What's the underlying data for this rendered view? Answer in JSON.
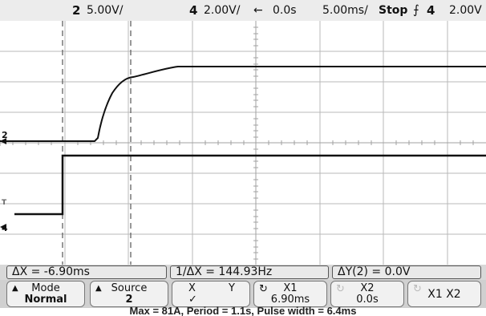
{
  "topbar": {
    "ch2_number": "2",
    "ch2_scale": "5.00V/",
    "ch4_number": "4",
    "ch4_scale": "2.00V/",
    "arrow": "←",
    "delay": "0.0s",
    "timebase": "5.00ms/",
    "run_state": "Stop",
    "trigger_slope_icon": "falling-edge-icon",
    "trigger_source": "4",
    "trigger_level": "2.00V"
  },
  "markers": {
    "ch2_ground": "2",
    "ch4_ground": "4",
    "trigger_marker": "T"
  },
  "measurements": {
    "delta_x": "ΔX = -6.90ms",
    "inv_delta_x": "1/ΔX = 144.93Hz",
    "delta_y": "ΔY(2) = 0.0V"
  },
  "softkeys": {
    "mode": {
      "label": "Mode",
      "value": "Normal"
    },
    "source": {
      "label": "Source",
      "value": "2"
    },
    "xy": {
      "label_x": "X",
      "label_y": "Y",
      "value": "✓"
    },
    "x1": {
      "label": "X1",
      "value": "6.90ms"
    },
    "x2": {
      "label": "X2",
      "value": "0.0s"
    },
    "x1x2": {
      "label": "X1 X2"
    }
  },
  "caption": "Max = 81A, Period = 1.1s, Pulse width = 6.4ms",
  "colors": {
    "trace": "#111111",
    "grid": "#b8b8b8",
    "cursor": "#555555"
  }
}
